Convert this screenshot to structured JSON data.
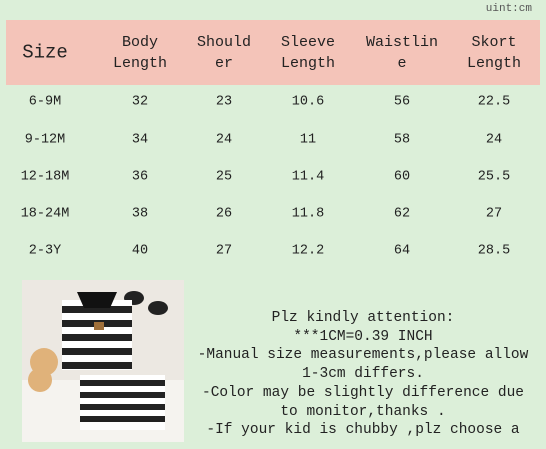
{
  "unit": "uint:cm",
  "table": {
    "header": [
      [
        "Size"
      ],
      [
        "Body",
        "Length"
      ],
      [
        "Should",
        "er"
      ],
      [
        "Sleeve",
        "Length"
      ],
      [
        "Waistlin",
        "e"
      ],
      [
        "Skort",
        "Length"
      ]
    ],
    "rows": [
      [
        "6-9M",
        "32",
        "23",
        "10.6",
        "56",
        "22.5"
      ],
      [
        "9-12M",
        "34",
        "24",
        "11",
        "58",
        "24"
      ],
      [
        "12-18M",
        "36",
        "25",
        "11.4",
        "60",
        "25.5"
      ],
      [
        "18-24M",
        "38",
        "26",
        "11.8",
        "62",
        "27"
      ],
      [
        "2-3Y",
        "40",
        "27",
        "12.2",
        "64",
        "28.5"
      ]
    ]
  },
  "notes": [
    "Plz kindly attention:",
    "***1CM=0.39 INCH",
    "-Manual size measurements,please allow",
    "1-3cm differs.",
    "-Color may be slightly difference due",
    "to monitor,thanks .",
    "-If your kid is chubby ,plz choose a"
  ]
}
